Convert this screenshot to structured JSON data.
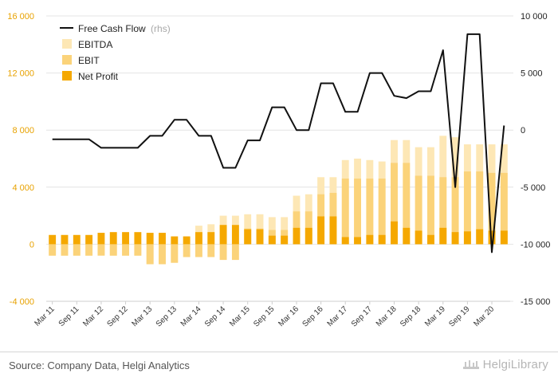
{
  "chart_data": {
    "type": "bar",
    "categories": [
      "Mar 11",
      "Jun 11",
      "Sep 11",
      "Dec 11",
      "Mar 12",
      "Jun 12",
      "Sep 12",
      "Dec 12",
      "Mar 13",
      "Jun 13",
      "Sep 13",
      "Dec 13",
      "Mar 14",
      "Jun 14",
      "Sep 14",
      "Dec 14",
      "Mar 15",
      "Jun 15",
      "Sep 15",
      "Dec 15",
      "Mar 16",
      "Jun 16",
      "Sep 16",
      "Dec 16",
      "Mar 17",
      "Jun 17",
      "Sep 17",
      "Dec 17",
      "Mar 18",
      "Jun 18",
      "Sep 18",
      "Dec 18",
      "Mar 19",
      "Jun 19",
      "Sep 19",
      "Dec 19",
      "Mar 20",
      "Jun 20"
    ],
    "x_tick_labels": [
      "Mar 11",
      "Sep 11",
      "Mar 12",
      "Sep 12",
      "Mar 13",
      "Sep 13",
      "Mar 14",
      "Sep 14",
      "Mar 15",
      "Sep 15",
      "Mar 16",
      "Sep 16",
      "Mar 17",
      "Sep 17",
      "Mar 18",
      "Sep 18",
      "Mar 19",
      "Sep 19",
      "Mar 20"
    ],
    "left_axis": {
      "ticks": [
        "16 000",
        "12 000",
        "8 000",
        "4 000",
        "0",
        "-4 000"
      ],
      "range": [
        -4000,
        16000
      ]
    },
    "right_axis": {
      "ticks": [
        "10 000",
        "5 000",
        "0",
        "-5 000",
        "-10 000",
        "-15 000"
      ],
      "range": [
        -15000,
        10000
      ]
    },
    "series": [
      {
        "name": "EBITDA",
        "axis": "left",
        "color": "#fde7b5",
        "values": [
          -800,
          -800,
          -800,
          -800,
          -750,
          -800,
          -800,
          -800,
          -1400,
          -1400,
          -1300,
          -200,
          1300,
          1400,
          2000,
          2000,
          2100,
          2100,
          1900,
          1900,
          3400,
          3500,
          4700,
          4700,
          5900,
          6000,
          5900,
          5800,
          7300,
          7300,
          6800,
          6800,
          7600,
          7500,
          7000,
          7000,
          7000,
          7000
        ]
      },
      {
        "name": "EBIT",
        "axis": "left",
        "color": "#fbd37a",
        "values": [
          -800,
          -800,
          -800,
          -800,
          -800,
          -800,
          -800,
          -800,
          -1400,
          -1400,
          -1300,
          -900,
          -900,
          -900,
          -1100,
          -1100,
          1100,
          1100,
          1000,
          1000,
          2300,
          2300,
          3500,
          3600,
          4600,
          4600,
          4600,
          4600,
          5700,
          5700,
          4800,
          4800,
          4700,
          4700,
          5100,
          5100,
          5000,
          5000
        ]
      },
      {
        "name": "Net Profit",
        "axis": "left",
        "color": "#f5a800",
        "values": [
          650,
          650,
          650,
          650,
          800,
          850,
          850,
          850,
          800,
          800,
          550,
          550,
          850,
          850,
          1350,
          1350,
          1050,
          1050,
          600,
          600,
          1150,
          1150,
          1950,
          1950,
          500,
          500,
          650,
          650,
          1600,
          1150,
          950,
          650,
          1150,
          850,
          900,
          1050,
          950,
          950
        ]
      },
      {
        "name": "Free Cash Flow",
        "axis": "right",
        "color": "#111111",
        "type": "line",
        "values": [
          -800,
          -800,
          -800,
          -800,
          -1550,
          -1550,
          -1550,
          -1550,
          -500,
          -500,
          900,
          900,
          -500,
          -500,
          -3300,
          -3300,
          -900,
          -900,
          2000,
          2000,
          0,
          0,
          4100,
          4100,
          1600,
          1600,
          5000,
          5000,
          3000,
          2800,
          3400,
          3400,
          7000,
          -5000,
          8400,
          8400,
          -10700,
          400
        ]
      }
    ],
    "legend": {
      "entries": [
        "Free Cash Flow",
        "(rhs)",
        "EBITDA",
        "EBIT",
        "Net Profit"
      ],
      "placement": "top-left"
    },
    "grid": true
  },
  "footer": {
    "source": "Source: Company Data, Helgi Analytics",
    "logo": "HelgiLibrary"
  }
}
